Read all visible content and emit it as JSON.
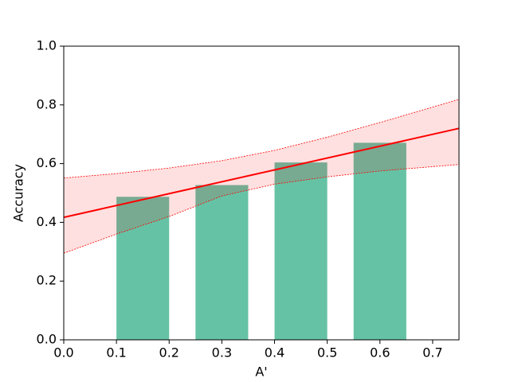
{
  "chart_data": {
    "type": "bar",
    "xlabel": "A'",
    "ylabel": "Accuracy",
    "bar_left": [
      0.1,
      0.25,
      0.4,
      0.55
    ],
    "bar_right": [
      0.2,
      0.35,
      0.5,
      0.65
    ],
    "values": [
      0.487,
      0.527,
      0.604,
      0.671
    ],
    "color": "#66c2a5",
    "fit": {
      "x": [
        0,
        0.75
      ],
      "values": [
        0.417,
        0.72
      ],
      "color": "#ff0000"
    },
    "band": {
      "x": [
        0,
        0.1,
        0.2,
        0.3,
        0.4,
        0.5,
        0.6,
        0.75
      ],
      "upper": [
        0.551,
        0.566,
        0.585,
        0.61,
        0.645,
        0.69,
        0.74,
        0.819
      ],
      "lower": [
        0.295,
        0.36,
        0.42,
        0.49,
        0.53,
        0.555,
        0.575,
        0.597
      ],
      "color": "#ff0000"
    },
    "xlim": [
      0,
      0.75
    ],
    "xticks": [
      {
        "value": 0,
        "label": "0.0"
      },
      0.1,
      0.2,
      0.3,
      0.4,
      0.5,
      0.6,
      0.7
    ],
    "ylim": [
      0,
      1
    ],
    "yticks": [
      {
        "value": 0,
        "label": "0.0"
      },
      0.2,
      0.4,
      0.6,
      0.8,
      {
        "value": 1,
        "label": "1.0"
      }
    ]
  }
}
